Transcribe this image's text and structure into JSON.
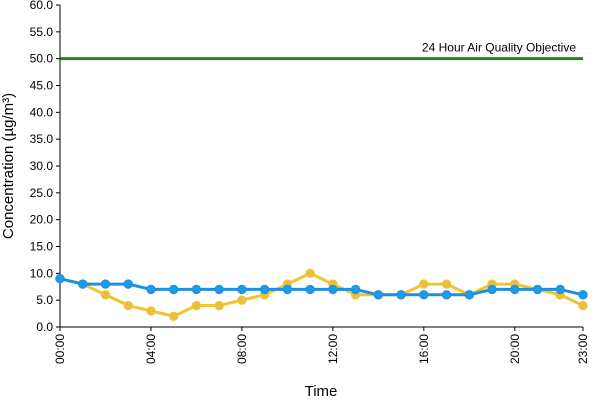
{
  "chart_data": {
    "type": "line",
    "title": "",
    "xlabel": "Time",
    "ylabel": "Concentration (µg/m³)",
    "ylim": [
      0,
      60
    ],
    "y_ticks": [
      "0.0",
      "5.0",
      "10.0",
      "15.0",
      "20.0",
      "25.0",
      "30.0",
      "35.0",
      "40.0",
      "45.0",
      "50.0",
      "55.0",
      "60.0"
    ],
    "x_range": [
      0,
      23
    ],
    "x_ticks": [
      {
        "x": 0,
        "label": "00:00"
      },
      {
        "x": 4,
        "label": "04:00"
      },
      {
        "x": 8,
        "label": "08:00"
      },
      {
        "x": 12,
        "label": "12:00"
      },
      {
        "x": 16,
        "label": "16:00"
      },
      {
        "x": 20,
        "label": "20:00"
      },
      {
        "x": 23,
        "label": "23:00"
      }
    ],
    "grid": false,
    "legend": "none",
    "reference_line": {
      "value": 50,
      "label": "24 Hour Air Quality Objective",
      "color": "#2e7d1e"
    },
    "x": [
      0,
      1,
      2,
      3,
      4,
      5,
      6,
      7,
      8,
      9,
      10,
      11,
      12,
      13,
      14,
      15,
      16,
      17,
      18,
      19,
      20,
      21,
      22,
      23
    ],
    "series": [
      {
        "color": "#f2c430",
        "marker_color": "#e8c040",
        "values": [
          9,
          8,
          6,
          4,
          3,
          2,
          4,
          4,
          5,
          6,
          8,
          10,
          8,
          6,
          6,
          6,
          8,
          8,
          6,
          8,
          8,
          7,
          6,
          4
        ]
      },
      {
        "color": "#1f8fe0",
        "marker_color": "#1c9be8",
        "values": [
          9,
          8,
          8,
          8,
          7,
          7,
          7,
          7,
          7,
          7,
          7,
          7,
          7,
          7,
          6,
          6,
          6,
          6,
          6,
          7,
          7,
          7,
          7,
          6
        ]
      }
    ]
  }
}
